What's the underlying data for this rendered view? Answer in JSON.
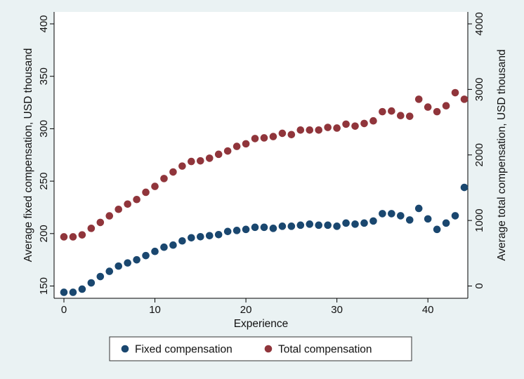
{
  "chart_data": {
    "type": "scatter",
    "x": [
      0,
      1,
      2,
      3,
      4,
      5,
      6,
      7,
      8,
      9,
      10,
      11,
      12,
      13,
      14,
      15,
      16,
      17,
      18,
      19,
      20,
      21,
      22,
      23,
      24,
      25,
      26,
      27,
      28,
      29,
      30,
      31,
      32,
      33,
      34,
      35,
      36,
      37,
      38,
      39,
      40,
      41,
      42,
      43,
      44
    ],
    "series": [
      {
        "name": "Fixed compensation",
        "axis": "left",
        "color": "#1a476f",
        "values": [
          144,
          144,
          147,
          153,
          159,
          164,
          169,
          172,
          175,
          179,
          183,
          187,
          189,
          193,
          196,
          197,
          198,
          199,
          202,
          203,
          204,
          206,
          206,
          205,
          207,
          207,
          208,
          209,
          208,
          208,
          207,
          210,
          209,
          210,
          212,
          219,
          219,
          217,
          213,
          224,
          214,
          204,
          210,
          217,
          244
        ]
      },
      {
        "name": "Total compensation",
        "axis": "right",
        "color": "#90353b",
        "values": [
          750,
          750,
          780,
          880,
          970,
          1070,
          1170,
          1250,
          1320,
          1430,
          1520,
          1640,
          1740,
          1830,
          1900,
          1910,
          1950,
          2010,
          2060,
          2130,
          2170,
          2250,
          2260,
          2280,
          2330,
          2310,
          2380,
          2380,
          2380,
          2420,
          2410,
          2470,
          2440,
          2480,
          2520,
          2660,
          2670,
          2600,
          2590,
          2850,
          2730,
          2660,
          2750,
          2950,
          2850
        ]
      }
    ],
    "xlabel": "Experience",
    "ylabel_left": "Average fixed compensation, USD thousand",
    "ylabel_right": "Average total compensation, USD thousand",
    "xlim": [
      0,
      44
    ],
    "ylim_left": [
      140,
      405
    ],
    "ylim_right": [
      -100,
      4100
    ],
    "xticks": [
      0,
      10,
      20,
      30,
      40
    ],
    "yticks_left": [
      150,
      200,
      250,
      300,
      350,
      400
    ],
    "yticks_right": [
      0,
      1000,
      2000,
      3000,
      4000
    ],
    "grid": false,
    "legend_position": "bottom",
    "background_color": "#eaf2f3",
    "plot_background": "#ffffff"
  }
}
